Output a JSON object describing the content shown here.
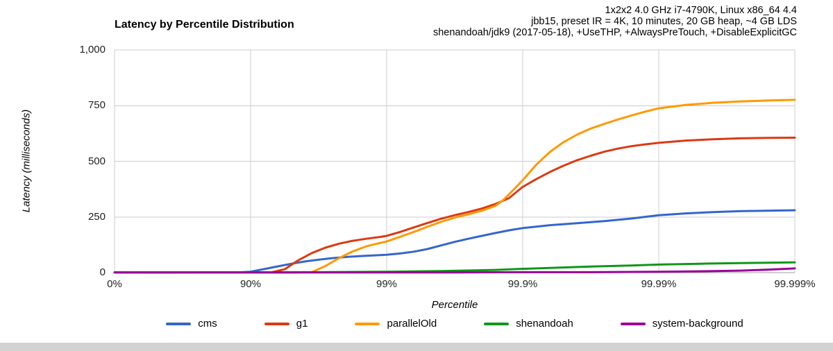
{
  "header": {
    "annotations": [
      "1x2x2 4.0 GHz i7-4790K, Linux x86_64 4.4",
      "jbb15, preset IR = 4K, 10 minutes, 20 GB heap, ~4 GB LDS",
      "shenandoah/jdk9 (2017-05-18), +UseTHP, +AlwaysPreTouch, +DisableExplicitGC"
    ]
  },
  "chart_data": {
    "type": "line",
    "title": "Latency by Percentile Distribution",
    "xlabel": "Percentile",
    "ylabel": "Latency (milliseconds)",
    "x_scale": "log-percentile-nines",
    "grid": true,
    "legend_position": "bottom",
    "ylim": [
      0,
      1000
    ],
    "x_ticks": [
      {
        "label": "0%",
        "nines": 0
      },
      {
        "label": "90%",
        "nines": 1
      },
      {
        "label": "99%",
        "nines": 2
      },
      {
        "label": "99.9%",
        "nines": 3
      },
      {
        "label": "99.99%",
        "nines": 4
      },
      {
        "label": "99.999%",
        "nines": 5
      }
    ],
    "y_ticks": [
      {
        "label": "0",
        "value": 0
      },
      {
        "label": "250",
        "value": 250
      },
      {
        "label": "500",
        "value": 500
      },
      {
        "label": "750",
        "value": 750
      },
      {
        "label": "1,000",
        "value": 1000
      }
    ],
    "series": [
      {
        "name": "cms",
        "color": "#3366cc",
        "points": [
          [
            0,
            1
          ],
          [
            0.5,
            1
          ],
          [
            0.9,
            1
          ],
          [
            1.0,
            4
          ],
          [
            1.1,
            16
          ],
          [
            1.2,
            28
          ],
          [
            1.3,
            40
          ],
          [
            1.4,
            50
          ],
          [
            1.5,
            58
          ],
          [
            1.6,
            65
          ],
          [
            1.7,
            70
          ],
          [
            1.8,
            74
          ],
          [
            1.9,
            77
          ],
          [
            2.0,
            80
          ],
          [
            2.1,
            86
          ],
          [
            2.2,
            94
          ],
          [
            2.3,
            106
          ],
          [
            2.4,
            122
          ],
          [
            2.5,
            138
          ],
          [
            2.6,
            152
          ],
          [
            2.7,
            165
          ],
          [
            2.8,
            178
          ],
          [
            2.9,
            190
          ],
          [
            3.0,
            200
          ],
          [
            3.2,
            213
          ],
          [
            3.4,
            222
          ],
          [
            3.6,
            231
          ],
          [
            3.8,
            243
          ],
          [
            4.0,
            258
          ],
          [
            4.2,
            266
          ],
          [
            4.4,
            272
          ],
          [
            4.6,
            276
          ],
          [
            4.8,
            278
          ],
          [
            5.0,
            280
          ]
        ]
      },
      {
        "name": "g1",
        "color": "#dc3912",
        "points": [
          [
            0,
            1
          ],
          [
            1.0,
            1
          ],
          [
            1.15,
            1
          ],
          [
            1.25,
            15
          ],
          [
            1.35,
            55
          ],
          [
            1.45,
            88
          ],
          [
            1.55,
            112
          ],
          [
            1.65,
            130
          ],
          [
            1.75,
            143
          ],
          [
            1.85,
            152
          ],
          [
            1.95,
            160
          ],
          [
            2.0,
            165
          ],
          [
            2.1,
            183
          ],
          [
            2.2,
            203
          ],
          [
            2.3,
            223
          ],
          [
            2.4,
            242
          ],
          [
            2.5,
            258
          ],
          [
            2.6,
            272
          ],
          [
            2.7,
            288
          ],
          [
            2.8,
            308
          ],
          [
            2.9,
            335
          ],
          [
            3.0,
            385
          ],
          [
            3.1,
            420
          ],
          [
            3.2,
            452
          ],
          [
            3.3,
            480
          ],
          [
            3.4,
            505
          ],
          [
            3.5,
            525
          ],
          [
            3.6,
            543
          ],
          [
            3.7,
            557
          ],
          [
            3.8,
            568
          ],
          [
            3.9,
            576
          ],
          [
            4.0,
            583
          ],
          [
            4.2,
            593
          ],
          [
            4.4,
            599
          ],
          [
            4.6,
            603
          ],
          [
            4.8,
            605
          ],
          [
            5.0,
            606
          ]
        ]
      },
      {
        "name": "parallelOld",
        "color": "#ff9900",
        "points": [
          [
            0,
            0
          ],
          [
            1.3,
            0
          ],
          [
            1.45,
            2
          ],
          [
            1.55,
            30
          ],
          [
            1.65,
            65
          ],
          [
            1.75,
            95
          ],
          [
            1.85,
            118
          ],
          [
            1.95,
            133
          ],
          [
            2.0,
            140
          ],
          [
            2.1,
            161
          ],
          [
            2.2,
            183
          ],
          [
            2.3,
            206
          ],
          [
            2.4,
            228
          ],
          [
            2.5,
            247
          ],
          [
            2.6,
            262
          ],
          [
            2.7,
            278
          ],
          [
            2.8,
            300
          ],
          [
            2.85,
            322
          ],
          [
            2.9,
            352
          ],
          [
            3.0,
            415
          ],
          [
            3.1,
            485
          ],
          [
            3.2,
            542
          ],
          [
            3.3,
            586
          ],
          [
            3.4,
            620
          ],
          [
            3.5,
            647
          ],
          [
            3.6,
            668
          ],
          [
            3.7,
            688
          ],
          [
            3.8,
            706
          ],
          [
            3.9,
            723
          ],
          [
            4.0,
            738
          ],
          [
            4.2,
            753
          ],
          [
            4.4,
            763
          ],
          [
            4.6,
            769
          ],
          [
            4.8,
            773
          ],
          [
            5.0,
            776
          ]
        ]
      },
      {
        "name": "shenandoah",
        "color": "#109618",
        "points": [
          [
            0,
            1
          ],
          [
            1.5,
            2
          ],
          [
            2.0,
            4
          ],
          [
            2.4,
            7
          ],
          [
            2.8,
            12
          ],
          [
            3.0,
            17
          ],
          [
            3.2,
            21
          ],
          [
            3.5,
            27
          ],
          [
            3.8,
            32
          ],
          [
            4.0,
            36
          ],
          [
            4.3,
            40
          ],
          [
            4.6,
            43
          ],
          [
            5.0,
            46
          ]
        ]
      },
      {
        "name": "system-background",
        "color": "#990099",
        "points": [
          [
            0,
            1
          ],
          [
            2.5,
            1
          ],
          [
            3.0,
            2
          ],
          [
            3.5,
            2
          ],
          [
            4.0,
            4
          ],
          [
            4.3,
            6
          ],
          [
            4.6,
            9
          ],
          [
            4.8,
            13
          ],
          [
            5.0,
            19
          ]
        ]
      }
    ]
  }
}
